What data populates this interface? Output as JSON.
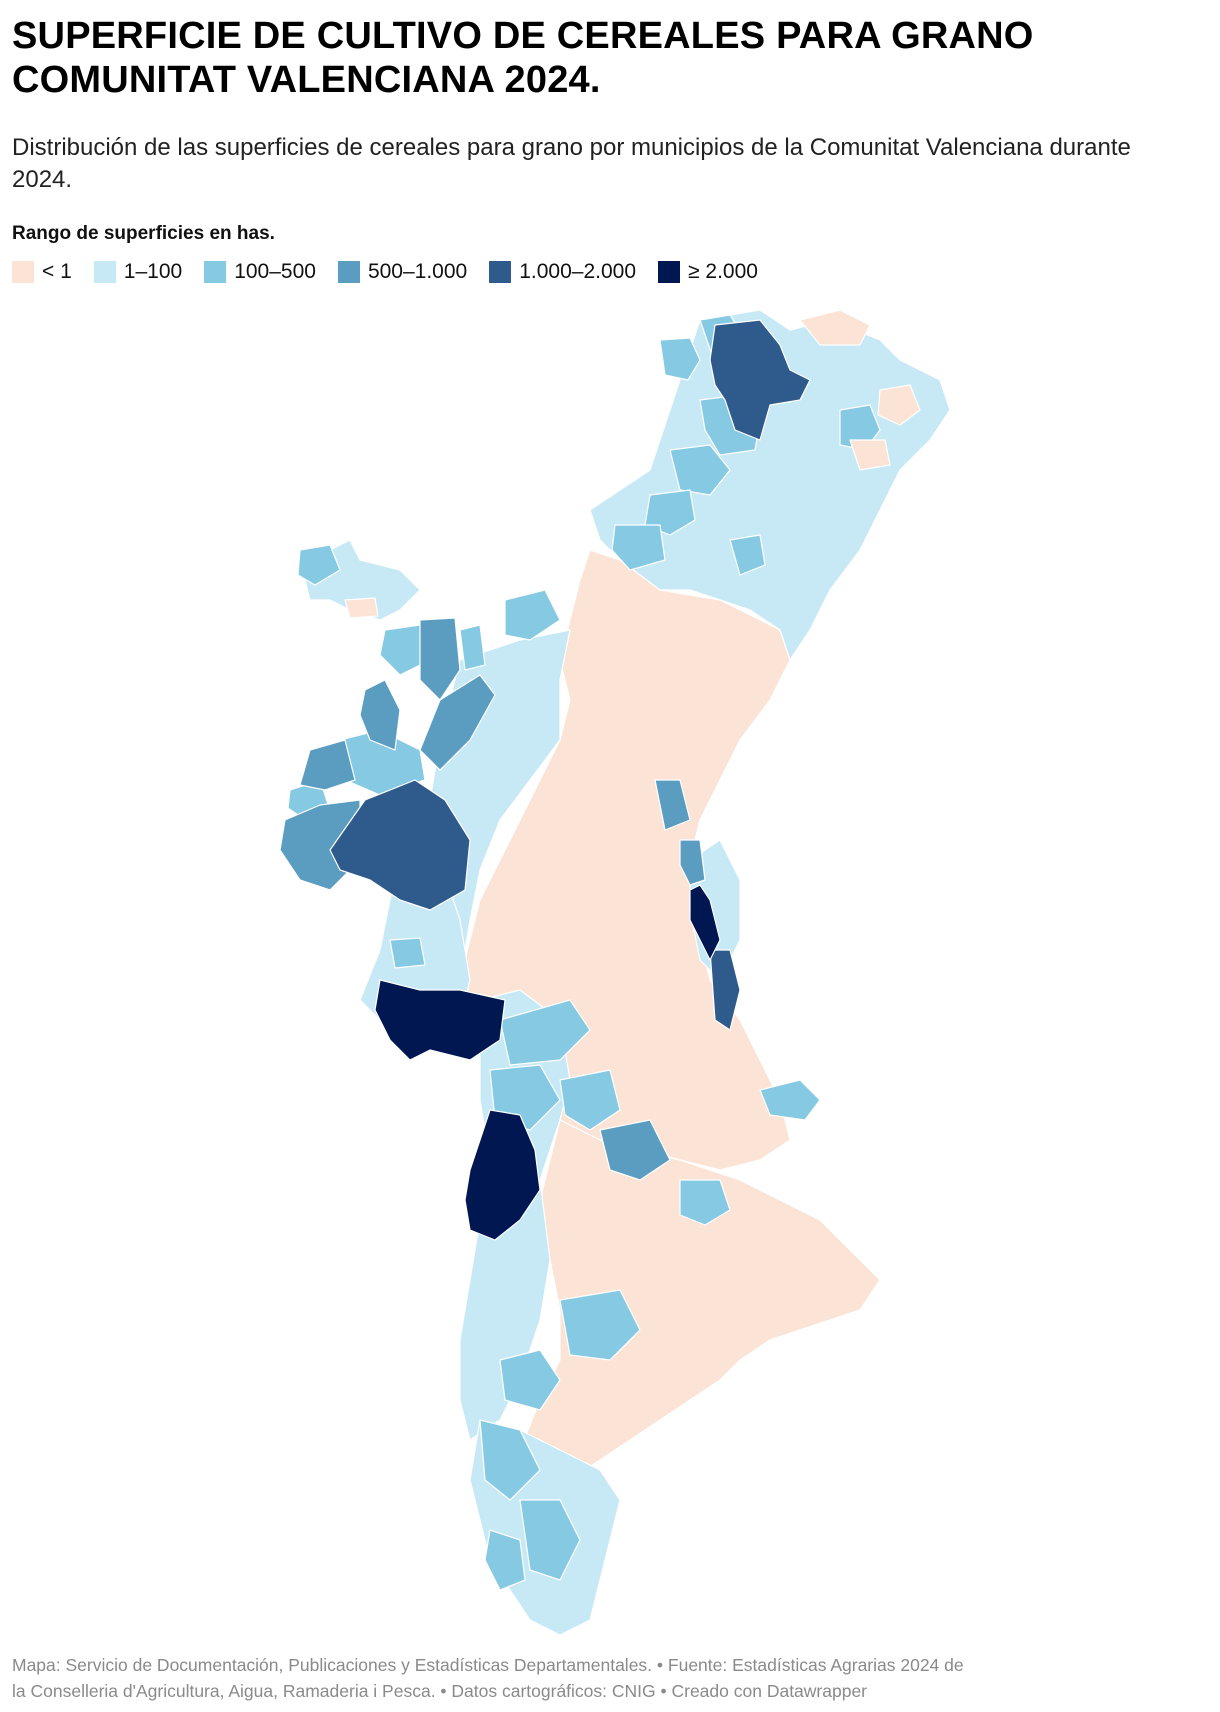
{
  "header": {
    "title_line1": "SUPERFICIE DE CULTIVO DE CEREALES PARA GRANO",
    "title_line2": "COMUNITAT VALENCIANA 2024.",
    "subtitle": "Distribución de las superficies de cereales para grano por municipios de la Comunitat Valenciana durante 2024."
  },
  "legend": {
    "title": "Rango de superficies en has.",
    "items": [
      {
        "label": "< 1",
        "color": "#fbe4d6"
      },
      {
        "label": "1–100",
        "color": "#c7e9f6"
      },
      {
        "label": "100–500",
        "color": "#86c9e3"
      },
      {
        "label": "500–1.000",
        "color": "#5a9dc1"
      },
      {
        "label": "1.000–2.000",
        "color": "#2e5b8c"
      },
      {
        "label": "≥ 2.000",
        "color": "#011752"
      }
    ]
  },
  "footer": {
    "line1": "Mapa: Servicio de Documentación, Publicaciones y Estadísticas Departamentales. • Fuente: Estadísticas Agrarias 2024 de",
    "line2": "la Conselleria d'Agricultura, Aigua, Ramaderia i Pesca. • Datos cartográficos: CNIG  • Creado con Datawrapper"
  }
}
